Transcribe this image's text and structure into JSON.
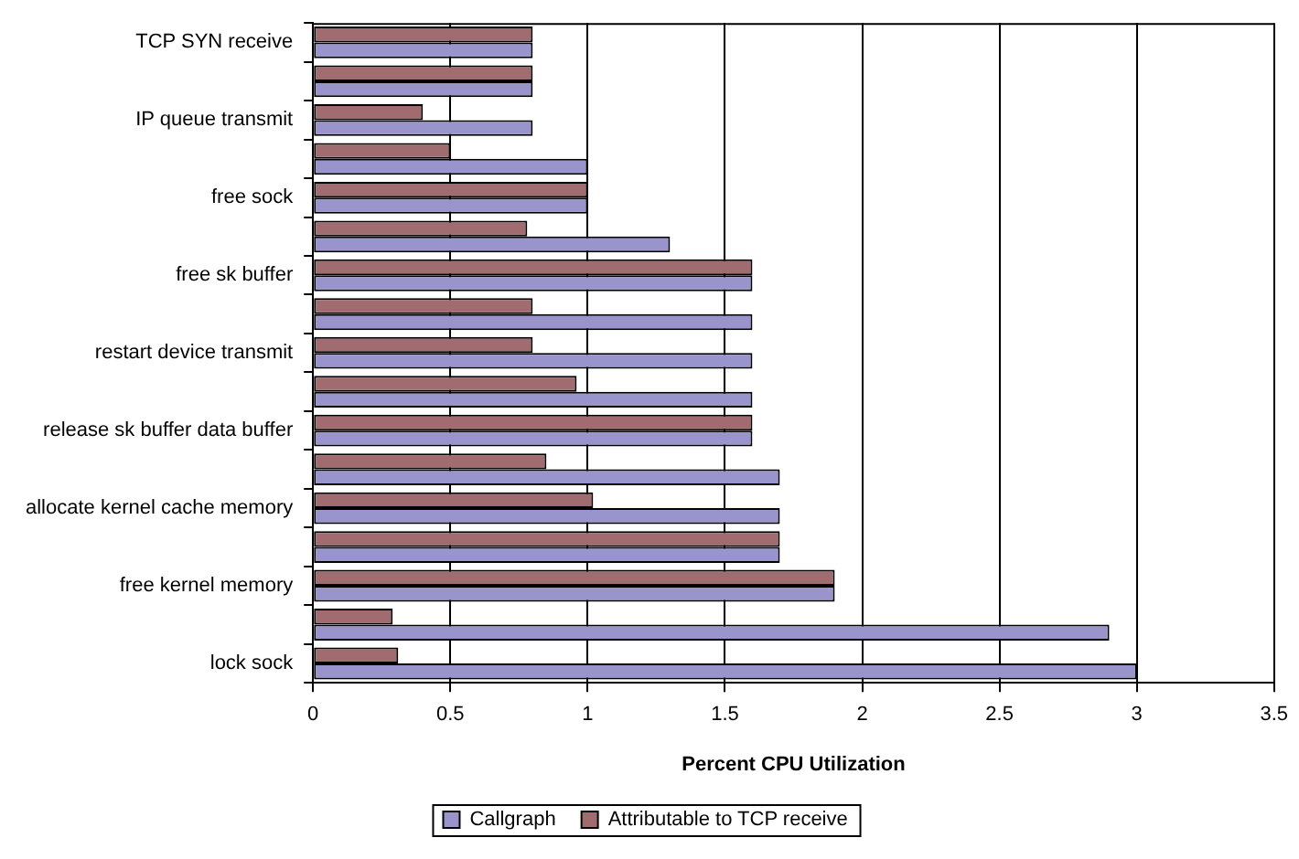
{
  "chart_data": {
    "type": "bar",
    "orientation": "horizontal",
    "xlabel": "Percent CPU Utilization",
    "categories": [
      "TCP SYN receive",
      null,
      "IP queue transmit",
      null,
      "free sock",
      null,
      "free sk buffer",
      null,
      "restart device transmit",
      null,
      "release sk buffer data buffer",
      null,
      "allocate kernel cache memory",
      null,
      "free kernel memory",
      null,
      "lock sock"
    ],
    "series": [
      {
        "name": "Callgraph",
        "color": "#9a94cc",
        "values": [
          0.8,
          0.8,
          0.8,
          1.0,
          1.0,
          1.3,
          1.6,
          1.6,
          1.6,
          1.6,
          1.6,
          1.7,
          1.7,
          1.7,
          1.9,
          2.9,
          3.0
        ]
      },
      {
        "name": "Attributable to TCP receive",
        "color": "#a06c70",
        "values": [
          0.8,
          0.8,
          0.4,
          0.5,
          1.0,
          0.78,
          1.6,
          0.8,
          0.8,
          0.96,
          1.6,
          0.85,
          1.02,
          1.7,
          1.9,
          0.29,
          0.31
        ]
      }
    ],
    "xlim": [
      0,
      3.5
    ],
    "xticks": [
      0,
      0.5,
      1,
      1.5,
      2,
      2.5,
      3,
      3.5
    ],
    "grid": "x",
    "legend": "bottom"
  }
}
